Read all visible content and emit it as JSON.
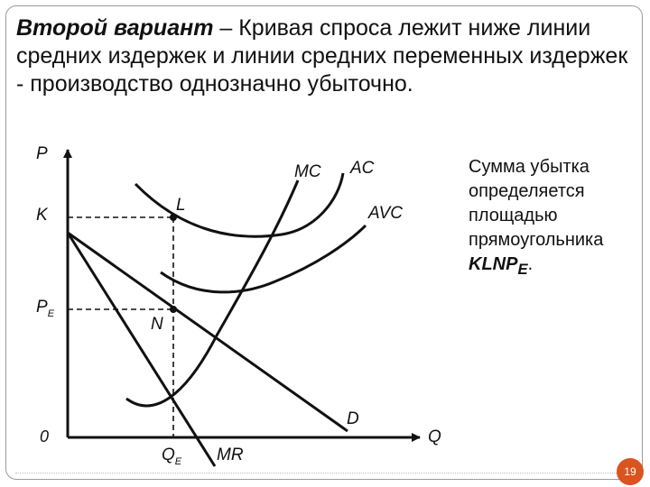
{
  "heading": {
    "lead": "Второй вариант",
    "rest": " – Кривая спроса лежит ниже линии средних издержек и линии средних переменных издержек - производство однозначно убыточно."
  },
  "graph": {
    "axis_y": "P",
    "axis_x": "Q",
    "origin": "0",
    "tick_k": "K",
    "tick_pe": "P",
    "tick_pe_sub": "E",
    "tick_qe": "Q",
    "tick_qe_sub": "E",
    "point_l": "L",
    "point_n": "N",
    "curve_mc": "MC",
    "curve_ac": "AC",
    "curve_avc": "AVC",
    "curve_d": "D",
    "curve_mr": "MR"
  },
  "note": {
    "text": "Сумма убытка определяется площадью прямоугольника ",
    "emph": "KLNP",
    "emph_sub": "E",
    "end": "."
  },
  "page": {
    "number": "19"
  },
  "colors": {
    "badge": "#d9541e",
    "ink": "#111111"
  }
}
